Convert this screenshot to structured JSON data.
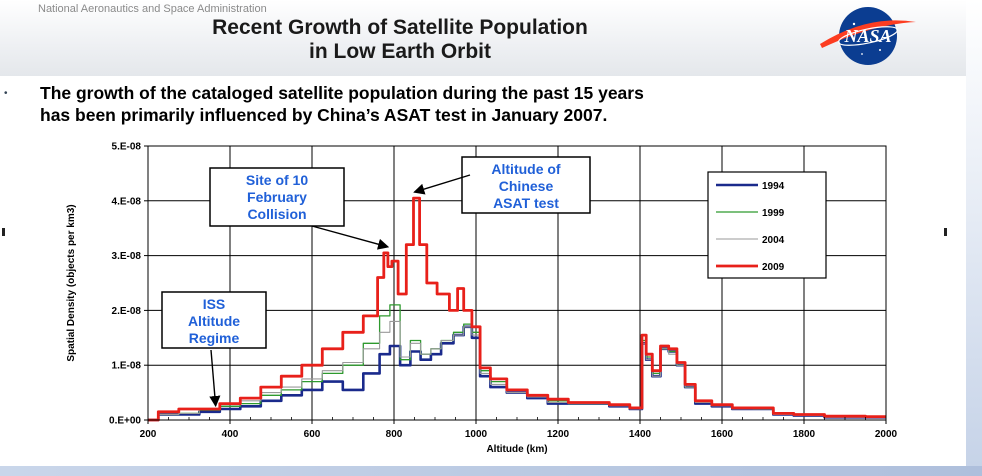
{
  "header": {
    "agency": "National Aeronautics and Space Administration",
    "title_line1": "Recent Growth of Satellite Population",
    "title_line2": "in Low Earth Orbit",
    "logo_text": "NASA"
  },
  "subtitle": {
    "line1": "The growth of the cataloged satellite population during the past 15 years",
    "line2": "has been primarily influenced by China’s ASAT test in January 2007."
  },
  "colors": {
    "1994": "#1a2a8c",
    "1999": "#2e9a2e",
    "2004": "#9a9a9a",
    "2009": "#e8201a",
    "annotation": "#2060d8"
  },
  "chart_data": {
    "type": "line",
    "xlabel": "Altitude (km)",
    "ylabel": "Spatial Density (objects per km3)",
    "xlim": [
      200,
      2000
    ],
    "ylim": [
      0,
      5e-08
    ],
    "x_ticks": [
      "200",
      "400",
      "600",
      "800",
      "1000",
      "1200",
      "1400",
      "1600",
      "1800",
      "2000"
    ],
    "y_ticks": [
      "0.E+00",
      "1.E-08",
      "2.E-08",
      "3.E-08",
      "4.E-08",
      "5.E-08"
    ],
    "grid": true,
    "legend_position": "top-right",
    "series": [
      {
        "name": "1994",
        "x": [
          200,
          250,
          300,
          350,
          400,
          450,
          500,
          550,
          600,
          650,
          700,
          750,
          780,
          800,
          830,
          850,
          880,
          900,
          930,
          960,
          980,
          1000,
          1020,
          1050,
          1100,
          1150,
          1200,
          1250,
          1300,
          1350,
          1400,
          1410,
          1420,
          1440,
          1460,
          1480,
          1500,
          1520,
          1550,
          1600,
          1650,
          1700,
          1750,
          1800,
          1900,
          2000
        ],
        "y": [
          0.0,
          1e-09,
          1e-09,
          1.5e-09,
          2e-09,
          2.5e-09,
          3.5e-09,
          4.5e-09,
          5.5e-09,
          7e-09,
          5.5e-09,
          8.5e-09,
          1.2e-08,
          1.35e-08,
          1e-08,
          1.25e-08,
          1.1e-08,
          1.2e-08,
          1.4e-08,
          1.55e-08,
          1.7e-08,
          1.5e-08,
          8e-09,
          6e-09,
          5e-09,
          4e-09,
          3e-09,
          3e-09,
          3e-09,
          2.5e-09,
          2e-09,
          1.4e-08,
          1.1e-08,
          8e-09,
          1.3e-08,
          1.25e-08,
          1e-08,
          6e-09,
          3e-09,
          2.5e-09,
          2e-09,
          2e-09,
          1e-09,
          8e-10,
          5e-10,
          5e-10
        ]
      },
      {
        "name": "1999",
        "x": [
          200,
          250,
          300,
          350,
          400,
          450,
          500,
          550,
          600,
          650,
          700,
          750,
          780,
          800,
          830,
          850,
          880,
          900,
          930,
          960,
          980,
          1000,
          1020,
          1050,
          1100,
          1150,
          1200,
          1250,
          1300,
          1350,
          1400,
          1410,
          1420,
          1440,
          1460,
          1480,
          1500,
          1520,
          1550,
          1600,
          1650,
          1700,
          1750,
          1800,
          1900,
          2000
        ],
        "y": [
          0.0,
          1e-09,
          1.2e-09,
          1.8e-09,
          2.5e-09,
          3e-09,
          4.5e-09,
          5.5e-09,
          7e-09,
          8.5e-09,
          1e-08,
          1.4e-08,
          1.9e-08,
          2.1e-08,
          1.1e-08,
          1.45e-08,
          1.2e-08,
          1.3e-08,
          1.45e-08,
          1.6e-08,
          1.75e-08,
          1.6e-08,
          9e-09,
          7e-09,
          5.5e-09,
          4.5e-09,
          3.5e-09,
          3e-09,
          3e-09,
          2.8e-09,
          2.2e-09,
          1.45e-08,
          1.15e-08,
          8.5e-09,
          1.3e-08,
          1.25e-08,
          1e-08,
          6e-09,
          3.5e-09,
          2.8e-09,
          2.2e-09,
          2e-09,
          1.2e-09,
          9e-10,
          6e-10,
          5e-10
        ]
      },
      {
        "name": "2004",
        "x": [
          200,
          250,
          300,
          350,
          400,
          450,
          500,
          550,
          600,
          650,
          700,
          750,
          780,
          800,
          830,
          850,
          880,
          900,
          930,
          960,
          980,
          1000,
          1020,
          1050,
          1100,
          1150,
          1200,
          1250,
          1300,
          1350,
          1400,
          1410,
          1420,
          1440,
          1460,
          1480,
          1500,
          1520,
          1550,
          1600,
          1650,
          1700,
          1750,
          1800,
          1900,
          2000
        ],
        "y": [
          0.0,
          1e-09,
          1.2e-09,
          2e-09,
          2.8e-09,
          3.5e-09,
          5e-09,
          6e-09,
          7.5e-09,
          9e-09,
          1.05e-08,
          1.3e-08,
          1.6e-08,
          1.8e-08,
          1.15e-08,
          1.4e-08,
          1.2e-08,
          1.3e-08,
          1.45e-08,
          1.55e-08,
          1.7e-08,
          1.55e-08,
          8.5e-09,
          6.5e-09,
          5e-09,
          4.2e-09,
          3.2e-09,
          3e-09,
          3e-09,
          2.6e-09,
          2e-09,
          1.4e-08,
          1.1e-08,
          8e-09,
          1.3e-08,
          1.2e-08,
          1e-08,
          6e-09,
          3.2e-09,
          2.6e-09,
          2e-09,
          2e-09,
          1e-09,
          8e-10,
          5e-10,
          5e-10
        ]
      },
      {
        "name": "2009",
        "x": [
          200,
          250,
          300,
          350,
          400,
          450,
          500,
          550,
          600,
          650,
          700,
          750,
          770,
          780,
          790,
          800,
          820,
          840,
          855,
          870,
          890,
          920,
          950,
          960,
          980,
          1000,
          1020,
          1050,
          1100,
          1150,
          1200,
          1250,
          1300,
          1350,
          1400,
          1410,
          1420,
          1440,
          1460,
          1480,
          1500,
          1520,
          1550,
          1600,
          1650,
          1700,
          1750,
          1800,
          1900,
          2000
        ],
        "y": [
          0.0,
          1.5e-09,
          2e-09,
          2e-09,
          3e-09,
          4e-09,
          6e-09,
          8e-09,
          1e-08,
          1.3e-08,
          1.6e-08,
          1.9e-08,
          2.6e-08,
          3.05e-08,
          2.8e-08,
          2.9e-08,
          2.3e-08,
          3.2e-08,
          4.05e-08,
          3.2e-08,
          2.5e-08,
          2.3e-08,
          2e-08,
          2.4e-08,
          2e-08,
          1.7e-08,
          9.5e-09,
          7.5e-09,
          5.5e-09,
          4.5e-09,
          3.8e-09,
          3.2e-09,
          3.2e-09,
          2.8e-09,
          2.2e-09,
          1.55e-08,
          1.2e-08,
          9e-09,
          1.35e-08,
          1.3e-08,
          1.05e-08,
          6.5e-09,
          3.5e-09,
          2.8e-09,
          2.2e-09,
          2.2e-09,
          1.2e-09,
          1e-09,
          7e-10,
          6e-10
        ]
      }
    ],
    "annotations": [
      {
        "lines": [
          "ISS",
          "Altitude",
          "Regime"
        ],
        "arrow_to": [
          365,
          1.5e-09
        ]
      },
      {
        "lines": [
          "Site of 10",
          "February",
          "Collision"
        ],
        "arrow_to": [
          785,
          3.05e-08
        ]
      },
      {
        "lines": [
          "Altitude of",
          "Chinese",
          "ASAT test"
        ],
        "arrow_to": [
          850,
          4.05e-08
        ]
      }
    ]
  }
}
